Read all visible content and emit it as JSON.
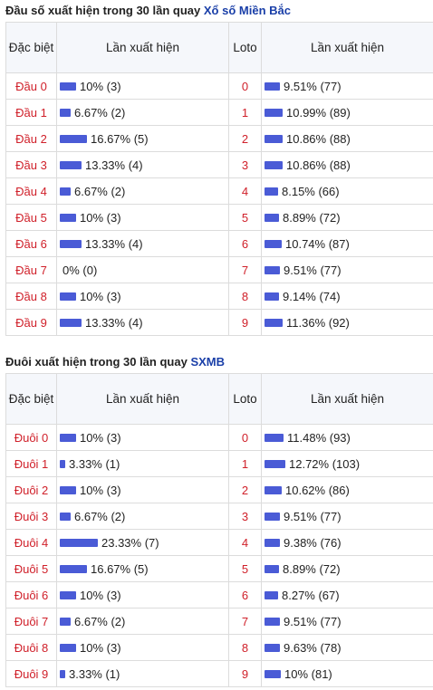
{
  "dau": {
    "title_prefix": "Đầu số xuất hiện trong 30 lần quay",
    "title_link": "Xổ số Miền Bắc",
    "headers": {
      "head": "Đặc biệt",
      "freq": "Lần xuất hiện",
      "loto": "Loto",
      "loto_freq": "Lần xuất hiện"
    },
    "rows": [
      {
        "name": "Đầu 0",
        "pct": 10,
        "text": "10% (3)",
        "loto": "0",
        "loto_pct": 9.51,
        "loto_text": "9.51% (77)"
      },
      {
        "name": "Đầu 1",
        "pct": 6.67,
        "text": "6.67% (2)",
        "loto": "1",
        "loto_pct": 10.99,
        "loto_text": "10.99% (89)"
      },
      {
        "name": "Đầu 2",
        "pct": 16.67,
        "text": "16.67% (5)",
        "loto": "2",
        "loto_pct": 10.86,
        "loto_text": "10.86% (88)"
      },
      {
        "name": "Đầu 3",
        "pct": 13.33,
        "text": "13.33% (4)",
        "loto": "3",
        "loto_pct": 10.86,
        "loto_text": "10.86% (88)"
      },
      {
        "name": "Đầu 4",
        "pct": 6.67,
        "text": "6.67% (2)",
        "loto": "4",
        "loto_pct": 8.15,
        "loto_text": "8.15% (66)"
      },
      {
        "name": "Đầu 5",
        "pct": 10,
        "text": "10% (3)",
        "loto": "5",
        "loto_pct": 8.89,
        "loto_text": "8.89% (72)"
      },
      {
        "name": "Đầu 6",
        "pct": 13.33,
        "text": "13.33% (4)",
        "loto": "6",
        "loto_pct": 10.74,
        "loto_text": "10.74% (87)"
      },
      {
        "name": "Đầu 7",
        "pct": 0,
        "text": "0% (0)",
        "loto": "7",
        "loto_pct": 9.51,
        "loto_text": "9.51% (77)"
      },
      {
        "name": "Đầu 8",
        "pct": 10,
        "text": "10% (3)",
        "loto": "8",
        "loto_pct": 9.14,
        "loto_text": "9.14% (74)"
      },
      {
        "name": "Đầu 9",
        "pct": 13.33,
        "text": "13.33% (4)",
        "loto": "9",
        "loto_pct": 11.36,
        "loto_text": "11.36% (92)"
      }
    ]
  },
  "duoi": {
    "title_prefix": "Đuôi xuất hiện trong 30 lần quay",
    "title_link": "SXMB",
    "headers": {
      "head": "Đặc biệt",
      "freq": "Lần xuất hiện",
      "loto": "Loto",
      "loto_freq": "Lần xuất hiện"
    },
    "rows": [
      {
        "name": "Đuôi 0",
        "pct": 10,
        "text": "10% (3)",
        "loto": "0",
        "loto_pct": 11.48,
        "loto_text": "11.48% (93)"
      },
      {
        "name": "Đuôi 1",
        "pct": 3.33,
        "text": "3.33% (1)",
        "loto": "1",
        "loto_pct": 12.72,
        "loto_text": "12.72% (103)"
      },
      {
        "name": "Đuôi 2",
        "pct": 10,
        "text": "10% (3)",
        "loto": "2",
        "loto_pct": 10.62,
        "loto_text": "10.62% (86)"
      },
      {
        "name": "Đuôi 3",
        "pct": 6.67,
        "text": "6.67% (2)",
        "loto": "3",
        "loto_pct": 9.51,
        "loto_text": "9.51% (77)"
      },
      {
        "name": "Đuôi 4",
        "pct": 23.33,
        "text": "23.33% (7)",
        "loto": "4",
        "loto_pct": 9.38,
        "loto_text": "9.38% (76)"
      },
      {
        "name": "Đuôi 5",
        "pct": 16.67,
        "text": "16.67% (5)",
        "loto": "5",
        "loto_pct": 8.89,
        "loto_text": "8.89% (72)"
      },
      {
        "name": "Đuôi 6",
        "pct": 10,
        "text": "10% (3)",
        "loto": "6",
        "loto_pct": 8.27,
        "loto_text": "8.27% (67)"
      },
      {
        "name": "Đuôi 7",
        "pct": 6.67,
        "text": "6.67% (2)",
        "loto": "7",
        "loto_pct": 9.51,
        "loto_text": "9.51% (77)"
      },
      {
        "name": "Đuôi 8",
        "pct": 10,
        "text": "10% (3)",
        "loto": "8",
        "loto_pct": 9.63,
        "loto_text": "9.63% (78)"
      },
      {
        "name": "Đuôi 9",
        "pct": 3.33,
        "text": "3.33% (1)",
        "loto": "9",
        "loto_pct": 10,
        "loto_text": "10% (81)"
      }
    ]
  },
  "colors": {
    "bar": "#4a5bd6",
    "name_text": "#d0202a",
    "link": "#1a3fa8",
    "header_bg": "#f5f7fb"
  }
}
